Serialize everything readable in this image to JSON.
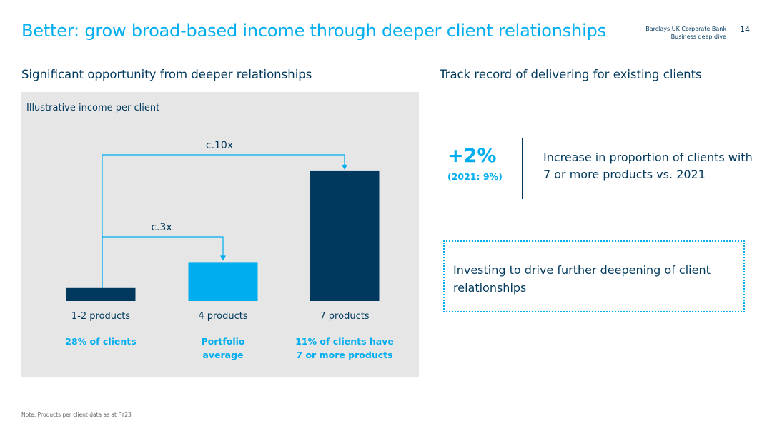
{
  "header": {
    "title": "Better: grow broad-based income through deeper client relationships",
    "brand_line1": "Barclays UK Corporate Bank",
    "brand_line2": "Business deep dive",
    "page_number": "14"
  },
  "left": {
    "heading": "Significant opportunity from deeper relationships"
  },
  "chart_data": {
    "type": "bar",
    "title": "Illustrative income per client",
    "categories": [
      "1-2 products",
      "4 products",
      "7 products"
    ],
    "values": [
      1,
      3,
      10
    ],
    "sublabels": [
      "28% of clients",
      "Portfolio\naverage",
      "11% of clients have\n7 or more products"
    ],
    "colors": [
      "#00395d",
      "#00aeef",
      "#00395d"
    ],
    "annotations": [
      {
        "text": "c.10x",
        "from": 0,
        "to": 2
      },
      {
        "text": "c.3x",
        "from": 0,
        "to": 1
      }
    ],
    "ylim": [
      0,
      10.6
    ],
    "grid": false
  },
  "right": {
    "heading": "Track record of delivering for existing clients",
    "stat_value": "+2%",
    "stat_sub": "(2021: 9%)",
    "stat_desc": "Increase in proportion of clients with 7 or more products vs. 2021",
    "callout": "Investing to drive further deepening of client relationships"
  },
  "footnote": "Note: Products per client data as at FY23",
  "colors": {
    "accent": "#00aeef",
    "navy": "#00395d",
    "panel": "#e6e6e6"
  }
}
